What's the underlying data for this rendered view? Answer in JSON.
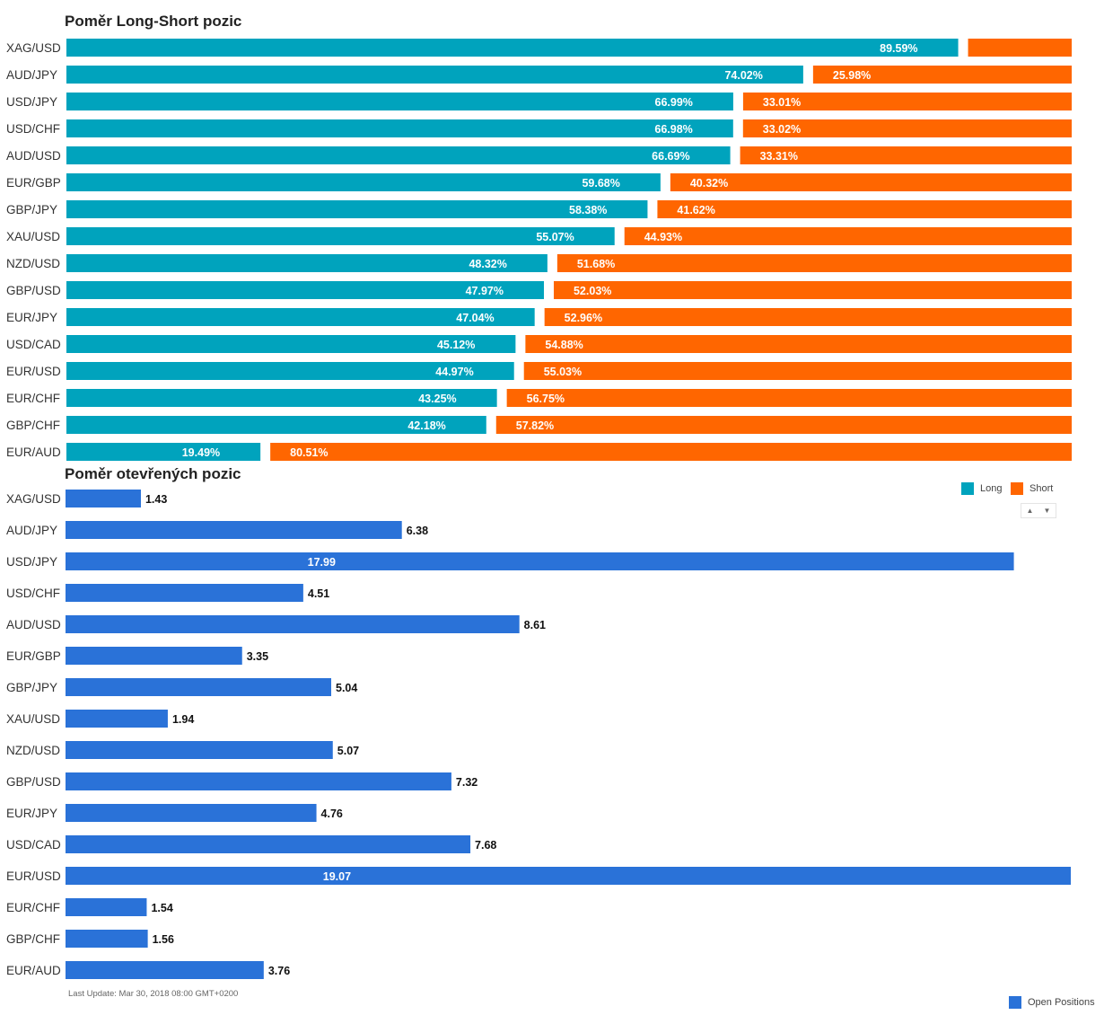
{
  "colors": {
    "long": "#00a3bd",
    "short": "#ff6600",
    "open": "#2a72d8"
  },
  "legend": {
    "long": "Long",
    "short": "Short",
    "open": "Open Positions"
  },
  "last_update": "Last Update: Mar 30, 2018 08:00 GMT+0200",
  "chart_data": [
    {
      "type": "bar",
      "orientation": "horizontal",
      "stacked": true,
      "title": "Poměr Long-Short pozic",
      "categories": [
        "XAG/USD",
        "AUD/JPY",
        "USD/JPY",
        "USD/CHF",
        "AUD/USD",
        "EUR/GBP",
        "GBP/JPY",
        "XAU/USD",
        "NZD/USD",
        "GBP/USD",
        "EUR/JPY",
        "USD/CAD",
        "EUR/USD",
        "EUR/CHF",
        "GBP/CHF",
        "EUR/AUD"
      ],
      "series": [
        {
          "name": "Long",
          "values": [
            89.59,
            74.02,
            66.99,
            66.98,
            66.69,
            59.68,
            58.38,
            55.07,
            48.32,
            47.97,
            47.04,
            45.12,
            44.97,
            43.25,
            42.18,
            19.49
          ],
          "labels": [
            "89.59%",
            "74.02%",
            "66.99%",
            "66.98%",
            "66.69%",
            "59.68%",
            "58.38%",
            "55.07%",
            "48.32%",
            "47.97%",
            "47.04%",
            "45.12%",
            "44.97%",
            "43.25%",
            "42.18%",
            "19.49%"
          ]
        },
        {
          "name": "Short",
          "values": [
            10.41,
            25.98,
            33.01,
            33.02,
            33.31,
            40.32,
            41.62,
            44.93,
            51.68,
            52.03,
            52.96,
            54.88,
            55.03,
            56.75,
            57.82,
            80.51
          ],
          "labels": [
            "",
            "25.98%",
            "33.01%",
            "33.02%",
            "33.31%",
            "40.32%",
            "41.62%",
            "44.93%",
            "51.68%",
            "52.03%",
            "52.96%",
            "54.88%",
            "55.03%",
            "56.75%",
            "57.82%",
            "80.51%"
          ]
        }
      ],
      "xlim": [
        0,
        100
      ],
      "legend": "right"
    },
    {
      "type": "bar",
      "orientation": "horizontal",
      "title": "Poměr otevřených pozic",
      "categories": [
        "XAG/USD",
        "AUD/JPY",
        "USD/JPY",
        "USD/CHF",
        "AUD/USD",
        "EUR/GBP",
        "GBP/JPY",
        "XAU/USD",
        "NZD/USD",
        "GBP/USD",
        "EUR/JPY",
        "USD/CAD",
        "EUR/USD",
        "EUR/CHF",
        "GBP/CHF",
        "EUR/AUD"
      ],
      "series": [
        {
          "name": "Open Positions",
          "values": [
            1.43,
            6.38,
            17.99,
            4.51,
            8.61,
            3.35,
            5.04,
            1.94,
            5.07,
            7.32,
            4.76,
            7.68,
            19.07,
            1.54,
            1.56,
            3.76
          ],
          "labels": [
            "1.43",
            "6.38",
            "17.99",
            "4.51",
            "8.61",
            "3.35",
            "5.04",
            "1.94",
            "5.07",
            "7.32",
            "4.76",
            "7.68",
            "19.07",
            "1.54",
            "1.56",
            "3.76"
          ]
        }
      ],
      "xlim": [
        0,
        19.07
      ],
      "legend": "bottom-right"
    }
  ]
}
